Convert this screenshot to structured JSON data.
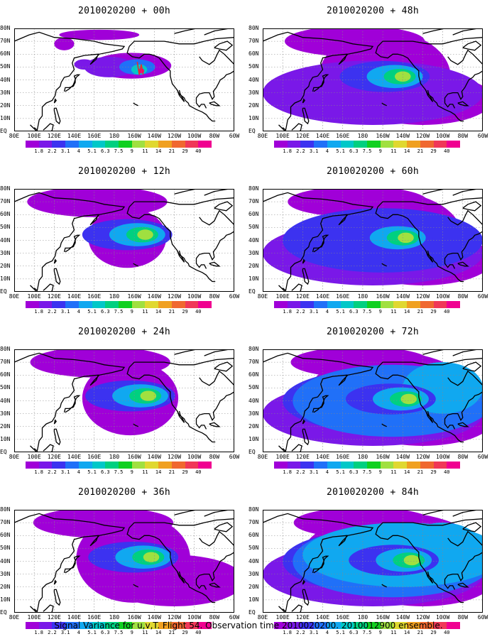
{
  "panels": [
    {
      "title": "2010020200 + 00h",
      "hour": 0
    },
    {
      "title": "2010020200 + 48h",
      "hour": 48
    },
    {
      "title": "2010020200 + 12h",
      "hour": 12
    },
    {
      "title": "2010020200 + 60h",
      "hour": 60
    },
    {
      "title": "2010020200 + 24h",
      "hour": 24
    },
    {
      "title": "2010020200 + 72h",
      "hour": 72
    },
    {
      "title": "2010020200 + 36h",
      "hour": 36
    },
    {
      "title": "2010020200 + 84h",
      "hour": 84
    }
  ],
  "lat_labels": [
    "80N",
    "70N",
    "60N",
    "50N",
    "40N",
    "30N",
    "20N",
    "10N",
    "EQ"
  ],
  "lon_labels": [
    "80E",
    "100E",
    "120E",
    "140E",
    "160E",
    "180",
    "160W",
    "140W",
    "120W",
    "100W",
    "80W",
    "60W"
  ],
  "colorbar": {
    "levels": [
      "1.8",
      "2.2",
      "3.1",
      "4",
      "5.1",
      "6.3",
      "7.5",
      "9",
      "11",
      "14",
      "21",
      "29",
      "40"
    ],
    "colors": [
      "#a000d8",
      "#7a18e8",
      "#3c32f0",
      "#2070f8",
      "#10a8f0",
      "#00c8c8",
      "#00d080",
      "#10d020",
      "#a0e040",
      "#e0d830",
      "#f0a020",
      "#f06830",
      "#f03858",
      "#f00090"
    ]
  },
  "caption": "Signal Variance for u,v,T. Flight 54. Observation time 2010020200. 2010012900 ensemble."
}
